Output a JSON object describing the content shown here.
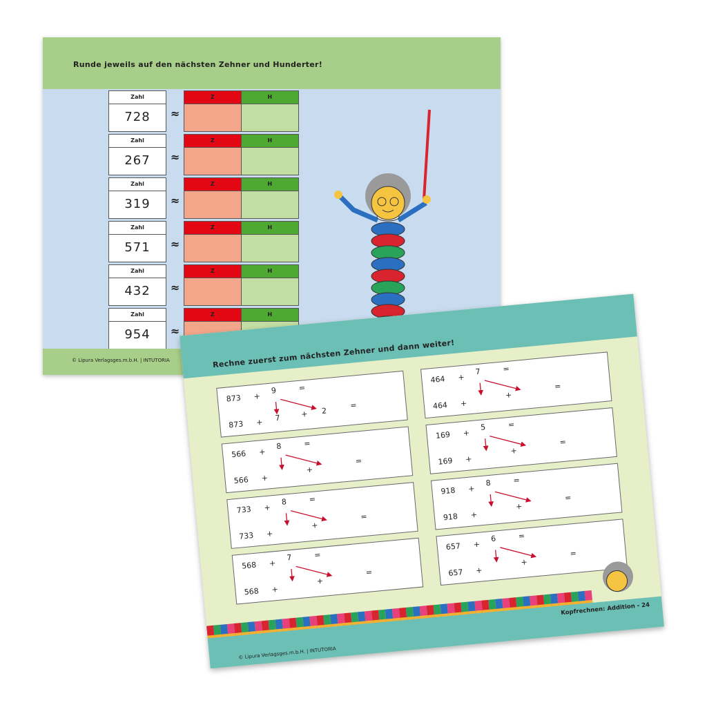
{
  "sheet1": {
    "title": "Runde jeweils auf den nächsten Zehner und Hunderter!",
    "zahl_label": "Zahl",
    "approx_symbol": "≈",
    "z_label": "Z",
    "h_label": "H",
    "numbers": [
      "728",
      "267",
      "319",
      "571",
      "432",
      "954"
    ],
    "copyright": "© Lipura Verlagsges.m.b.H. | INTUTORIA",
    "colors": {
      "header": "#a8cf8a",
      "body": "#c9dcef",
      "z_header": "#e30613",
      "h_header": "#4ea832",
      "z_cell": "#f4a68a",
      "h_cell": "#c3dea3"
    }
  },
  "sheet2": {
    "title": "Rechne zuerst zum nächsten Zehner und dann weiter!",
    "plus": "+",
    "equals": "=",
    "problems": [
      {
        "a": "873",
        "b": "9",
        "step1": "7",
        "step2": "2"
      },
      {
        "a": "566",
        "b": "8",
        "step1": "",
        "step2": ""
      },
      {
        "a": "733",
        "b": "8",
        "step1": "",
        "step2": ""
      },
      {
        "a": "568",
        "b": "7",
        "step1": "",
        "step2": ""
      },
      {
        "a": "464",
        "b": "7",
        "step1": "",
        "step2": ""
      },
      {
        "a": "169",
        "b": "5",
        "step1": "",
        "step2": ""
      },
      {
        "a": "918",
        "b": "8",
        "step1": "",
        "step2": ""
      },
      {
        "a": "657",
        "b": "6",
        "step1": "",
        "step2": ""
      }
    ],
    "page_label": "Kopfrechnen: Addition - 24",
    "copyright": "© Lipura Verlagsges.m.b.H. | INTUTORIA",
    "colors": {
      "header": "#6bbfb5",
      "body": "#e7efc9",
      "arrow": "#c8102e"
    }
  }
}
